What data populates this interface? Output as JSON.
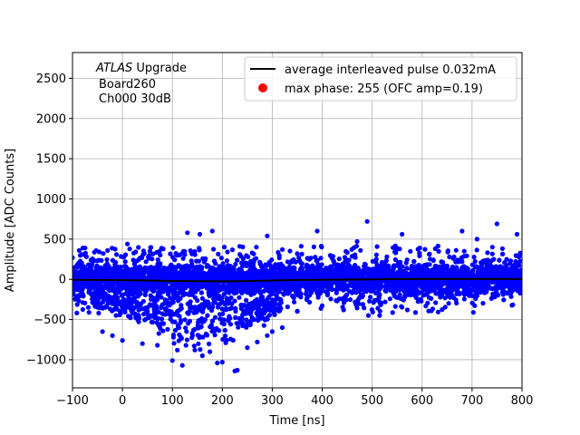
{
  "chart_data": {
    "type": "scatter",
    "title": "",
    "xlabel": "Time [ns]",
    "ylabel": "Amplitude [ADC Counts]",
    "xlim": [
      -100,
      800
    ],
    "ylim": [
      -1350,
      2820
    ],
    "xticks": [
      -100,
      0,
      100,
      200,
      300,
      400,
      500,
      600,
      700,
      800
    ],
    "yticks": [
      -1000,
      -500,
      0,
      500,
      1000,
      1500,
      2000,
      2500
    ],
    "grid": true,
    "legend_position": "top-right",
    "annotation": {
      "experiment_italic": "ATLAS",
      "experiment_rest": " Upgrade",
      "line2": "Board260",
      "line3": "Ch000 30dB"
    },
    "series": [
      {
        "name": "average interleaved pulse 0.032mA",
        "kind": "line",
        "color": "#000000",
        "x": [
          -100,
          -50,
          0,
          50,
          100,
          150,
          200,
          250,
          300,
          350,
          400,
          450,
          500,
          550,
          600,
          650,
          700,
          750,
          800
        ],
        "y": [
          -5,
          -8,
          -10,
          -15,
          -20,
          -22,
          -25,
          -22,
          -15,
          -8,
          -5,
          -3,
          0,
          2,
          3,
          3,
          3,
          3,
          3
        ]
      },
      {
        "name": "max phase: 255 (OFC amp=0.19)",
        "kind": "marker",
        "color": "#ff0000",
        "x": [],
        "y": []
      },
      {
        "name": "",
        "kind": "scatter",
        "color": "#0000ff",
        "noise_band": {
          "x_range": [
            -100,
            800
          ],
          "center": 0,
          "core_halfwidth": 150,
          "outer_range": [
            -450,
            500
          ],
          "extreme_highs": [
            [
              10,
              440
            ],
            [
              55,
              350
            ],
            [
              130,
              580
            ],
            [
              155,
              560
            ],
            [
              180,
              600
            ],
            [
              290,
              540
            ],
            [
              390,
              600
            ],
            [
              470,
              470
            ],
            [
              490,
              720
            ],
            [
              560,
              560
            ],
            [
              680,
              600
            ],
            [
              710,
              500
            ],
            [
              750,
              690
            ],
            [
              790,
              560
            ]
          ]
        },
        "dip_cluster": {
          "x_range": [
            -60,
            320
          ],
          "center_x": 160,
          "min_y": -1150,
          "points": [
            [
              100,
              -1010
            ],
            [
              120,
              -1070
            ],
            [
              160,
              -950
            ],
            [
              190,
              -1040
            ],
            [
              200,
              -1030
            ],
            [
              225,
              -1140
            ],
            [
              230,
              -1130
            ],
            [
              175,
              -900
            ],
            [
              145,
              -880
            ],
            [
              110,
              -880
            ],
            [
              70,
              -820
            ],
            [
              40,
              -800
            ],
            [
              0,
              -760
            ],
            [
              -20,
              -700
            ],
            [
              -40,
              -650
            ],
            [
              250,
              -850
            ],
            [
              270,
              -780
            ],
            [
              290,
              -700
            ],
            [
              300,
              -650
            ],
            [
              320,
              -600
            ]
          ]
        }
      }
    ]
  }
}
